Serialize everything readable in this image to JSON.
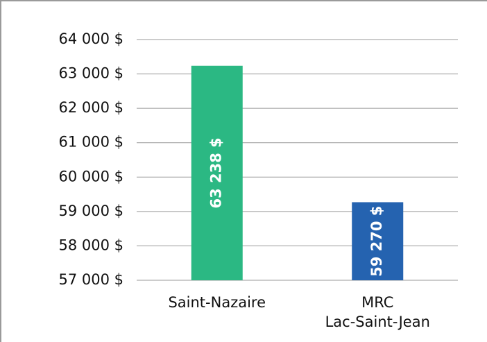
{
  "chart_data": {
    "type": "bar",
    "categories": [
      "Saint-Nazaire",
      "MRC\nLac-Saint-Jean"
    ],
    "values": [
      63238,
      59270
    ],
    "value_labels": [
      "63 238 $",
      "59 270 $"
    ],
    "colors": [
      "#2bb883",
      "#2563b0"
    ],
    "ylim": [
      57000,
      64000
    ],
    "yticks": [
      {
        "value": 57000,
        "label": "57 000 $"
      },
      {
        "value": 58000,
        "label": "58 000 $"
      },
      {
        "value": 59000,
        "label": "59 000 $"
      },
      {
        "value": 60000,
        "label": "60 000 $"
      },
      {
        "value": 61000,
        "label": "61 000 $"
      },
      {
        "value": 62000,
        "label": "62 000 $"
      },
      {
        "value": 63000,
        "label": "63 000 $"
      },
      {
        "value": 64000,
        "label": "64 000 $"
      }
    ],
    "grid": true
  }
}
